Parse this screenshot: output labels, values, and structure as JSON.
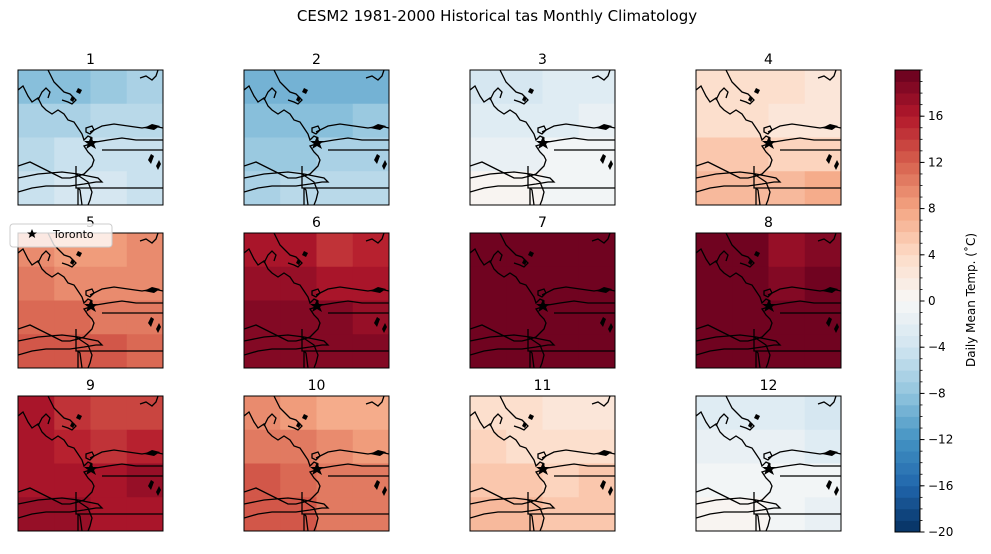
{
  "title": "CESM2 1981-2000 Historical tas Monthly Climatology",
  "legend_label": "Toronto",
  "chart_data": {
    "type": "heatmap",
    "title": "CESM2 1981-2000 Historical tas Monthly Climatology",
    "panels": [
      {
        "label": "1",
        "grid": [
          [
            -9,
            -9,
            -8,
            -7
          ],
          [
            -7,
            -7,
            -6,
            -6
          ],
          [
            -6,
            -5,
            -5,
            -5
          ],
          [
            -5,
            -4,
            -4,
            -5
          ]
        ]
      },
      {
        "label": "2",
        "grid": [
          [
            -10,
            -10,
            -10,
            -10
          ],
          [
            -9,
            -9,
            -9,
            -8
          ],
          [
            -8,
            -8,
            -7,
            -7
          ],
          [
            -7,
            -6,
            -6,
            -6
          ]
        ]
      },
      {
        "label": "3",
        "grid": [
          [
            -4,
            -4,
            -3,
            -3
          ],
          [
            -3,
            -3,
            -3,
            -2
          ],
          [
            -2,
            -2,
            -1,
            -1
          ],
          [
            0,
            0,
            -1,
            -1
          ]
        ]
      },
      {
        "label": "4",
        "grid": [
          [
            3,
            3,
            3,
            2
          ],
          [
            3,
            3,
            2,
            2
          ],
          [
            5,
            5,
            4,
            4
          ],
          [
            6,
            6,
            6,
            7
          ]
        ]
      },
      {
        "label": "5",
        "grid": [
          [
            9,
            8,
            8,
            9
          ],
          [
            10,
            9,
            9,
            9
          ],
          [
            11,
            11,
            10,
            10
          ],
          [
            12,
            12,
            12,
            11
          ]
        ]
      },
      {
        "label": "6",
        "grid": [
          [
            16,
            16,
            14,
            15
          ],
          [
            17,
            17,
            16,
            16
          ],
          [
            18,
            18,
            18,
            17
          ],
          [
            18,
            18,
            18,
            18
          ]
        ]
      },
      {
        "label": "7",
        "grid": [
          [
            19,
            19,
            19,
            19
          ],
          [
            19,
            19,
            19,
            19
          ],
          [
            19,
            19,
            19,
            19
          ],
          [
            19,
            19,
            19,
            19
          ]
        ]
      },
      {
        "label": "8",
        "grid": [
          [
            19,
            19,
            17,
            18
          ],
          [
            19,
            19,
            18,
            19
          ],
          [
            19,
            19,
            19,
            19
          ],
          [
            19,
            19,
            19,
            19
          ]
        ]
      },
      {
        "label": "9",
        "grid": [
          [
            16,
            14,
            13,
            13
          ],
          [
            16,
            15,
            14,
            15
          ],
          [
            16,
            16,
            16,
            17
          ],
          [
            17,
            17,
            16,
            16
          ]
        ]
      },
      {
        "label": "10",
        "grid": [
          [
            9,
            8,
            7,
            7
          ],
          [
            10,
            10,
            9,
            8
          ],
          [
            12,
            11,
            10,
            10
          ],
          [
            12,
            12,
            10,
            10
          ]
        ]
      },
      {
        "label": "11",
        "grid": [
          [
            3,
            3,
            2,
            2
          ],
          [
            4,
            3,
            3,
            3
          ],
          [
            5,
            5,
            4,
            5
          ],
          [
            6,
            6,
            5,
            5
          ]
        ]
      },
      {
        "label": "12",
        "grid": [
          [
            -3,
            -3,
            -3,
            -4
          ],
          [
            -2,
            -2,
            -2,
            -3
          ],
          [
            -1,
            -1,
            -1,
            -1
          ],
          [
            0,
            0,
            -1,
            -2
          ]
        ]
      }
    ],
    "colorbar": {
      "label": "Daily Mean Temp. (˚C)",
      "colormap": "RdBu_r",
      "vmin": -20,
      "vmax": 19,
      "step": 1,
      "major_ticks": [
        -20,
        -16,
        -12,
        -8,
        -4,
        0,
        4,
        8,
        12,
        16
      ],
      "tick_labels": [
        "−20",
        "−16",
        "−12",
        "−8",
        "−4",
        "0",
        "4",
        "8",
        "12",
        "16"
      ]
    },
    "marker": "star",
    "grid": false
  }
}
